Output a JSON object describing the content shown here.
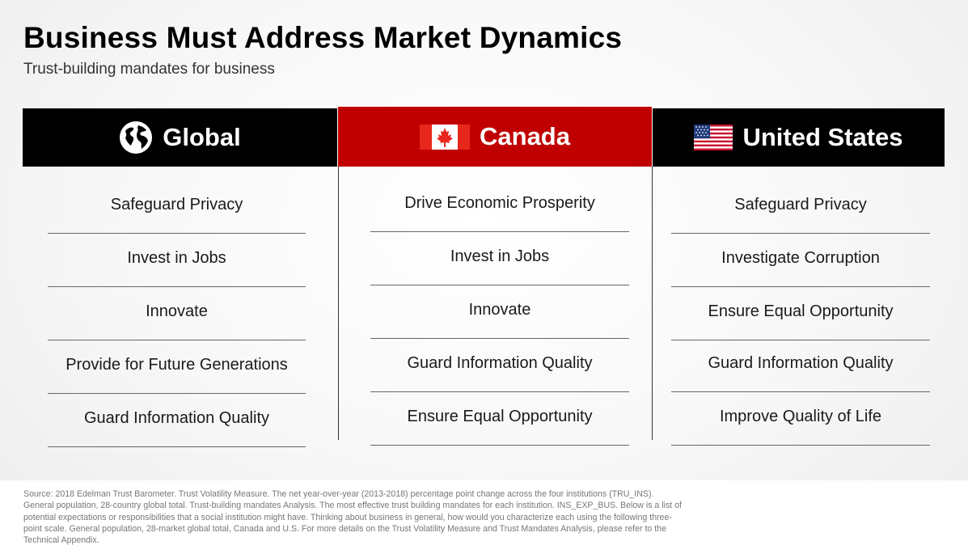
{
  "title": "Business Must Address Market Dynamics",
  "subtitle": "Trust-building mandates for business",
  "columns": [
    {
      "label": "Global",
      "icon": "globe-icon",
      "header_color": "#000000",
      "items": [
        "Safeguard Privacy",
        "Invest in Jobs",
        "Innovate",
        "Provide for Future Generations",
        "Guard Information Quality"
      ]
    },
    {
      "label": "Canada",
      "icon": "canada-flag-icon",
      "header_color": "#c00000",
      "items": [
        "Drive Economic Prosperity",
        "Invest in Jobs",
        "Innovate",
        "Guard Information Quality",
        "Ensure Equal Opportunity"
      ]
    },
    {
      "label": "United States",
      "icon": "us-flag-icon",
      "header_color": "#000000",
      "items": [
        "Safeguard Privacy",
        "Investigate Corruption",
        "Ensure Equal Opportunity",
        "Guard Information Quality",
        "Improve Quality of Life"
      ]
    }
  ],
  "source": "Source: 2018 Edelman Trust Barometer. Trust Volatility Measure. The net year-over-year (2013-2018) percentage point change across the four institutions (TRU_INS). General population, 28-country global total. Trust-building mandates Analysis. The most effective trust building mandates for each institution. INS_EXP_BUS. Below is a list of potential expectations or responsibilities that a social institution might have. Thinking about business in general, how would you characterize each using the following three-point scale. General population, 28-market global total, Canada and U.S. For more details on the Trust Volatility Measure and Trust Mandates Analysis, please refer to the Technical Appendix."
}
